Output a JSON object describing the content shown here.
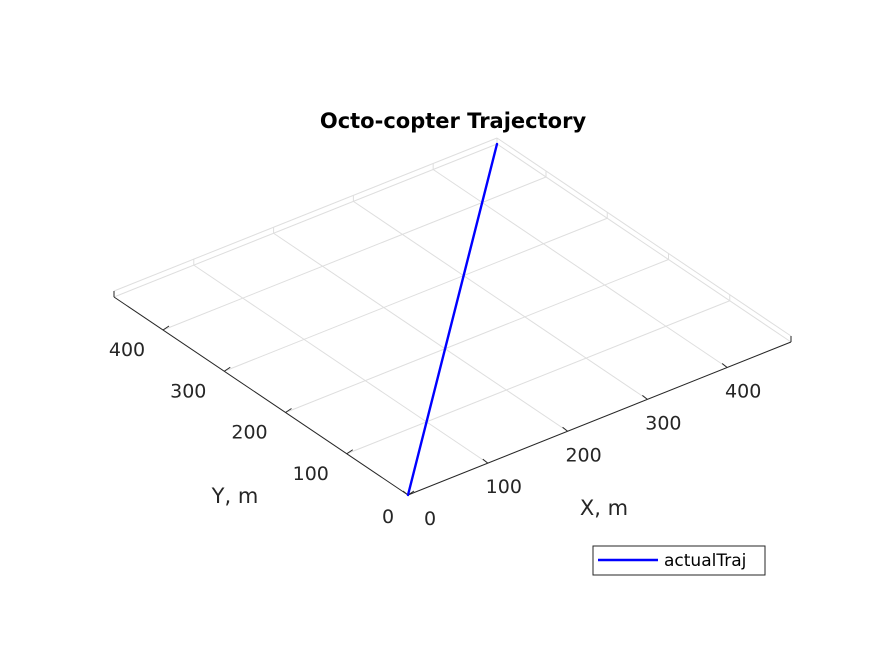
{
  "chart_data": {
    "type": "line",
    "projection": "3d",
    "title": "Octo-copter Trajectory",
    "xlabel": "X, m",
    "ylabel": "Y, m",
    "zlabel": "",
    "xlim": [
      0,
      480
    ],
    "ylim": [
      0,
      480
    ],
    "xticks": [
      0,
      100,
      200,
      300,
      400
    ],
    "yticks": [
      0,
      100,
      200,
      300,
      400
    ],
    "grid": true,
    "legend_location": "bottom-right",
    "series": [
      {
        "name": "actualTraj",
        "color": "#0000ff",
        "x": [
          0,
          480
        ],
        "y": [
          0,
          480
        ],
        "z": [
          0,
          0
        ]
      }
    ]
  }
}
